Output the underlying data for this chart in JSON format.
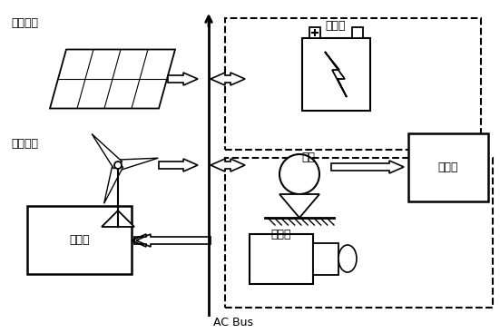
{
  "ac_bus_label": "AC Bus",
  "components": {
    "solar_label": "光伏机组",
    "wind_label": "风电机组",
    "battery_label": "蕤电池",
    "heatpump_label": "热泵",
    "microturbine_label": "微燃机",
    "thermal_load_label": "热负荷",
    "electric_load_label": "电负荷"
  },
  "background": "#ffffff",
  "line_color": "#000000",
  "font_color": "#000000"
}
